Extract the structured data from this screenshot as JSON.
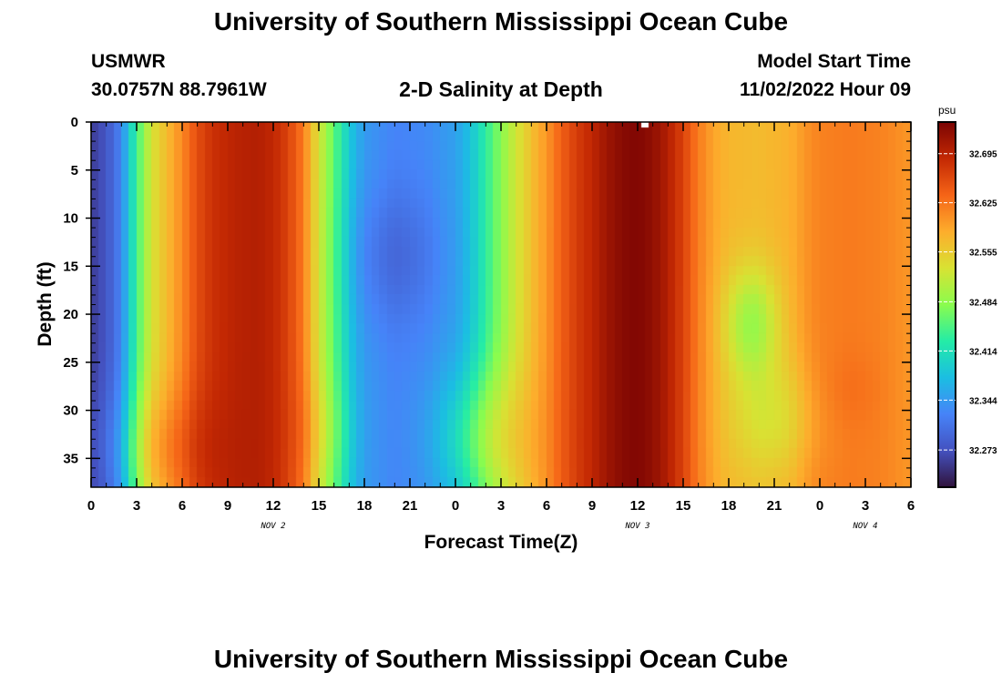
{
  "page": {
    "title": "University of Southern Mississippi Ocean Cube",
    "station_id": "USMWR",
    "station_coords": "30.0757N  88.7961W",
    "plot_title": "2-D Salinity at Depth",
    "model_start_label": "Model Start Time",
    "model_start_value": "11/02/2022 Hour 09",
    "footer_title": "University of Southern Mississippi Ocean Cube"
  },
  "chart_data": {
    "type": "heatmap",
    "title": "2-D Salinity at Depth",
    "xlabel": "Forecast Time(Z)",
    "ylabel": "Depth (ft)",
    "x_unit": "hours",
    "xlim": [
      0,
      54
    ],
    "ylim": [
      38,
      0
    ],
    "x_ticks": [
      {
        "x": 0,
        "label": "0"
      },
      {
        "x": 3,
        "label": "3"
      },
      {
        "x": 6,
        "label": "6"
      },
      {
        "x": 9,
        "label": "9"
      },
      {
        "x": 12,
        "label": "12"
      },
      {
        "x": 15,
        "label": "15"
      },
      {
        "x": 18,
        "label": "18"
      },
      {
        "x": 21,
        "label": "21"
      },
      {
        "x": 24,
        "label": "0"
      },
      {
        "x": 27,
        "label": "3"
      },
      {
        "x": 30,
        "label": "6"
      },
      {
        "x": 33,
        "label": "9"
      },
      {
        "x": 36,
        "label": "12"
      },
      {
        "x": 39,
        "label": "15"
      },
      {
        "x": 42,
        "label": "18"
      },
      {
        "x": 45,
        "label": "21"
      },
      {
        "x": 48,
        "label": "0"
      },
      {
        "x": 51,
        "label": "3"
      },
      {
        "x": 54,
        "label": "6"
      }
    ],
    "date_labels": [
      {
        "x": 12,
        "label": "NOV 2"
      },
      {
        "x": 36,
        "label": "NOV 3"
      },
      {
        "x": 51,
        "label": "NOV 4"
      }
    ],
    "y_ticks": [
      0,
      5,
      10,
      15,
      20,
      25,
      30,
      35
    ],
    "colorbar": {
      "unit": "psu",
      "min": 32.22,
      "max": 32.74,
      "ticks": [
        32.695,
        32.625,
        32.555,
        32.484,
        32.414,
        32.344,
        32.273
      ]
    },
    "salinity_profile_surface": [
      {
        "x": 0,
        "v": 32.255
      },
      {
        "x": 1,
        "v": 32.275
      },
      {
        "x": 2,
        "v": 32.325
      },
      {
        "x": 3,
        "v": 32.44
      },
      {
        "x": 4,
        "v": 32.53
      },
      {
        "x": 5,
        "v": 32.57
      },
      {
        "x": 6,
        "v": 32.61
      },
      {
        "x": 7,
        "v": 32.655
      },
      {
        "x": 8,
        "v": 32.68
      },
      {
        "x": 9.5,
        "v": 32.695
      },
      {
        "x": 11,
        "v": 32.7
      },
      {
        "x": 12,
        "v": 32.69
      },
      {
        "x": 13,
        "v": 32.665
      },
      {
        "x": 14,
        "v": 32.62
      },
      {
        "x": 15,
        "v": 32.53
      },
      {
        "x": 16,
        "v": 32.46
      },
      {
        "x": 17,
        "v": 32.39
      },
      {
        "x": 18,
        "v": 32.345
      },
      {
        "x": 20,
        "v": 32.325
      },
      {
        "x": 22,
        "v": 32.33
      },
      {
        "x": 24,
        "v": 32.35
      },
      {
        "x": 25,
        "v": 32.38
      },
      {
        "x": 26,
        "v": 32.43
      },
      {
        "x": 27,
        "v": 32.48
      },
      {
        "x": 28,
        "v": 32.525
      },
      {
        "x": 29,
        "v": 32.565
      },
      {
        "x": 30,
        "v": 32.6
      },
      {
        "x": 31,
        "v": 32.64
      },
      {
        "x": 32,
        "v": 32.67
      },
      {
        "x": 33,
        "v": 32.69
      },
      {
        "x": 34,
        "v": 32.715
      },
      {
        "x": 35,
        "v": 32.73
      },
      {
        "x": 36,
        "v": 32.735
      },
      {
        "x": 37,
        "v": 32.725
      },
      {
        "x": 38,
        "v": 32.7
      },
      {
        "x": 39,
        "v": 32.665
      },
      {
        "x": 40,
        "v": 32.62
      },
      {
        "x": 41,
        "v": 32.59
      },
      {
        "x": 42,
        "v": 32.575
      },
      {
        "x": 44,
        "v": 32.57
      },
      {
        "x": 46,
        "v": 32.58
      },
      {
        "x": 47,
        "v": 32.6
      },
      {
        "x": 48,
        "v": 32.615
      },
      {
        "x": 50,
        "v": 32.62
      },
      {
        "x": 52,
        "v": 32.615
      },
      {
        "x": 54,
        "v": 32.6
      }
    ]
  }
}
